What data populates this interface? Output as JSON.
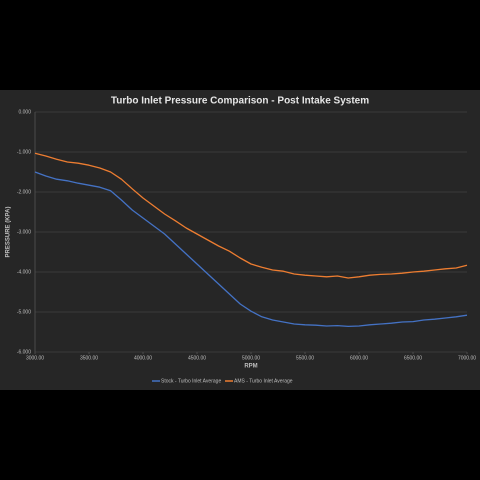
{
  "chart_data": {
    "type": "line",
    "title": "Turbo Inlet Pressure Comparison - Post Intake System",
    "x_label": "RPM",
    "y_label": "PRESSURE (KPA)",
    "x": [
      3000,
      3100,
      3200,
      3300,
      3400,
      3500,
      3600,
      3700,
      3800,
      3900,
      4000,
      4100,
      4200,
      4300,
      4400,
      4500,
      4600,
      4700,
      4800,
      4900,
      5000,
      5100,
      5200,
      5300,
      5400,
      5500,
      5600,
      5700,
      5800,
      5900,
      6000,
      6100,
      6200,
      6300,
      6400,
      6500,
      6600,
      6700,
      6800,
      6900,
      7000
    ],
    "series": [
      {
        "name": "Stock - Turbo Inlet Average",
        "color": "#4472c4",
        "values": [
          -1.5,
          -1.6,
          -1.68,
          -1.72,
          -1.78,
          -1.83,
          -1.88,
          -1.97,
          -2.2,
          -2.45,
          -2.65,
          -2.85,
          -3.05,
          -3.3,
          -3.55,
          -3.8,
          -4.05,
          -4.3,
          -4.55,
          -4.8,
          -4.98,
          -5.12,
          -5.2,
          -5.25,
          -5.3,
          -5.32,
          -5.33,
          -5.35,
          -5.34,
          -5.36,
          -5.35,
          -5.32,
          -5.3,
          -5.28,
          -5.25,
          -5.24,
          -5.2,
          -5.18,
          -5.15,
          -5.12,
          -5.08
        ]
      },
      {
        "name": "AMS - Turbo Inlet Average",
        "color": "#ed7d31",
        "values": [
          -1.03,
          -1.1,
          -1.18,
          -1.25,
          -1.28,
          -1.33,
          -1.4,
          -1.5,
          -1.68,
          -1.92,
          -2.15,
          -2.35,
          -2.55,
          -2.72,
          -2.9,
          -3.05,
          -3.2,
          -3.35,
          -3.48,
          -3.65,
          -3.8,
          -3.88,
          -3.95,
          -3.98,
          -4.05,
          -4.08,
          -4.1,
          -4.12,
          -4.1,
          -4.15,
          -4.12,
          -4.08,
          -4.06,
          -4.05,
          -4.03,
          -4.0,
          -3.98,
          -3.95,
          -3.92,
          -3.9,
          -3.83
        ]
      }
    ],
    "xlim": [
      3000,
      7000
    ],
    "xticks": [
      {
        "value": 3000,
        "label": "3000.00"
      },
      {
        "value": 3500,
        "label": "3500.00"
      },
      {
        "value": 4000,
        "label": "4000.00"
      },
      {
        "value": 4500,
        "label": "4500.00"
      },
      {
        "value": 5000,
        "label": "5000.00"
      },
      {
        "value": 5500,
        "label": "5500.00"
      },
      {
        "value": 6000,
        "label": "6000.00"
      },
      {
        "value": 6500,
        "label": "6500.00"
      },
      {
        "value": 7000,
        "label": "7000.00"
      }
    ],
    "ylim": [
      -6,
      0
    ],
    "yticks": [
      {
        "value": 0,
        "label": "0.000"
      },
      {
        "value": -1,
        "label": "-1.000"
      },
      {
        "value": -2,
        "label": "-2.000"
      },
      {
        "value": -3,
        "label": "-3.000"
      },
      {
        "value": -4,
        "label": "-4.000"
      },
      {
        "value": -5,
        "label": "-5.000"
      },
      {
        "value": -6,
        "label": "-6.000"
      }
    ],
    "grid": true,
    "legend": "bottom"
  }
}
